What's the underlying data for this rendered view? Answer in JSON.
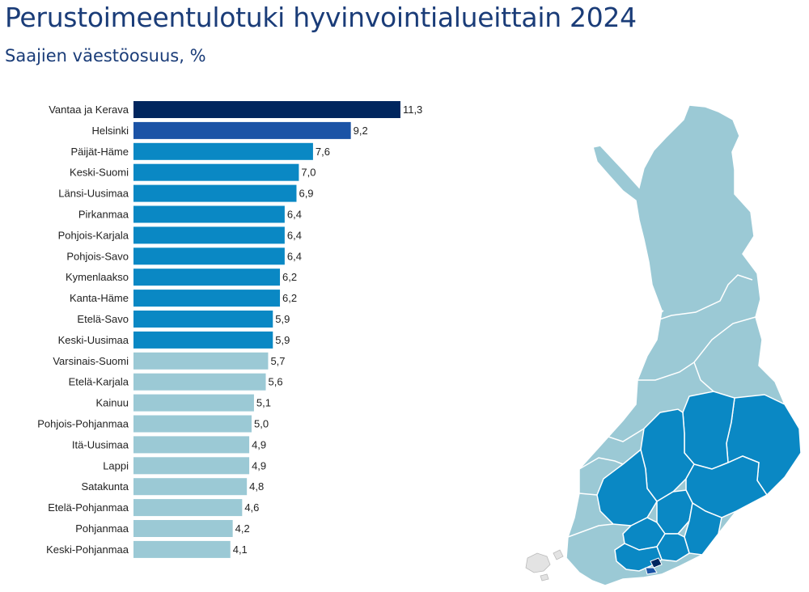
{
  "header": {
    "title": "Perustoimeentulotuki hyvinvointialueittain 2024",
    "subtitle": "Saajien väestöosuus, %"
  },
  "colors": {
    "darkest": "#00265e",
    "dark": "#1b53a6",
    "mid": "#0a88c4",
    "light": "#9bc9d5",
    "map_border": "#ffffff",
    "map_small": "#e3e3e3"
  },
  "chart_data": {
    "type": "bar",
    "orientation": "horizontal",
    "title": "Perustoimeentulotuki hyvinvointialueittain 2024",
    "subtitle": "Saajien väestöosuus, %",
    "xlabel": "",
    "ylabel": "",
    "xlim": [
      0,
      11.3
    ],
    "grid": false,
    "legend": "none",
    "categories": [
      "Vantaa ja Kerava",
      "Helsinki",
      "Päijät-Häme",
      "Keski-Suomi",
      "Länsi-Uusimaa",
      "Pirkanmaa",
      "Pohjois-Karjala",
      "Pohjois-Savo",
      "Kymenlaakso",
      "Kanta-Häme",
      "Etelä-Savo",
      "Keski-Uusimaa",
      "Varsinais-Suomi",
      "Etelä-Karjala",
      "Kainuu",
      "Pohjois-Pohjanmaa",
      "Itä-Uusimaa",
      "Lappi",
      "Satakunta",
      "Etelä-Pohjanmaa",
      "Pohjanmaa",
      "Keski-Pohjanmaa"
    ],
    "values": [
      11.3,
      9.2,
      7.6,
      7.0,
      6.9,
      6.4,
      6.4,
      6.4,
      6.2,
      6.2,
      5.9,
      5.9,
      5.7,
      5.6,
      5.1,
      5.0,
      4.9,
      4.9,
      4.8,
      4.6,
      4.2,
      4.1
    ],
    "value_labels": [
      "11,3",
      "9,2",
      "7,6",
      "7,0",
      "6,9",
      "6,4",
      "6,4",
      "6,4",
      "6,2",
      "6,2",
      "5,9",
      "5,9",
      "5,7",
      "5,6",
      "5,1",
      "5,0",
      "4,9",
      "4,9",
      "4,8",
      "4,6",
      "4,2",
      "4,1"
    ],
    "color_classes": [
      "darkest",
      "dark",
      "mid",
      "mid",
      "mid",
      "mid",
      "mid",
      "mid",
      "mid",
      "mid",
      "mid",
      "mid",
      "light",
      "light",
      "light",
      "light",
      "light",
      "light",
      "light",
      "light",
      "light",
      "light"
    ]
  }
}
